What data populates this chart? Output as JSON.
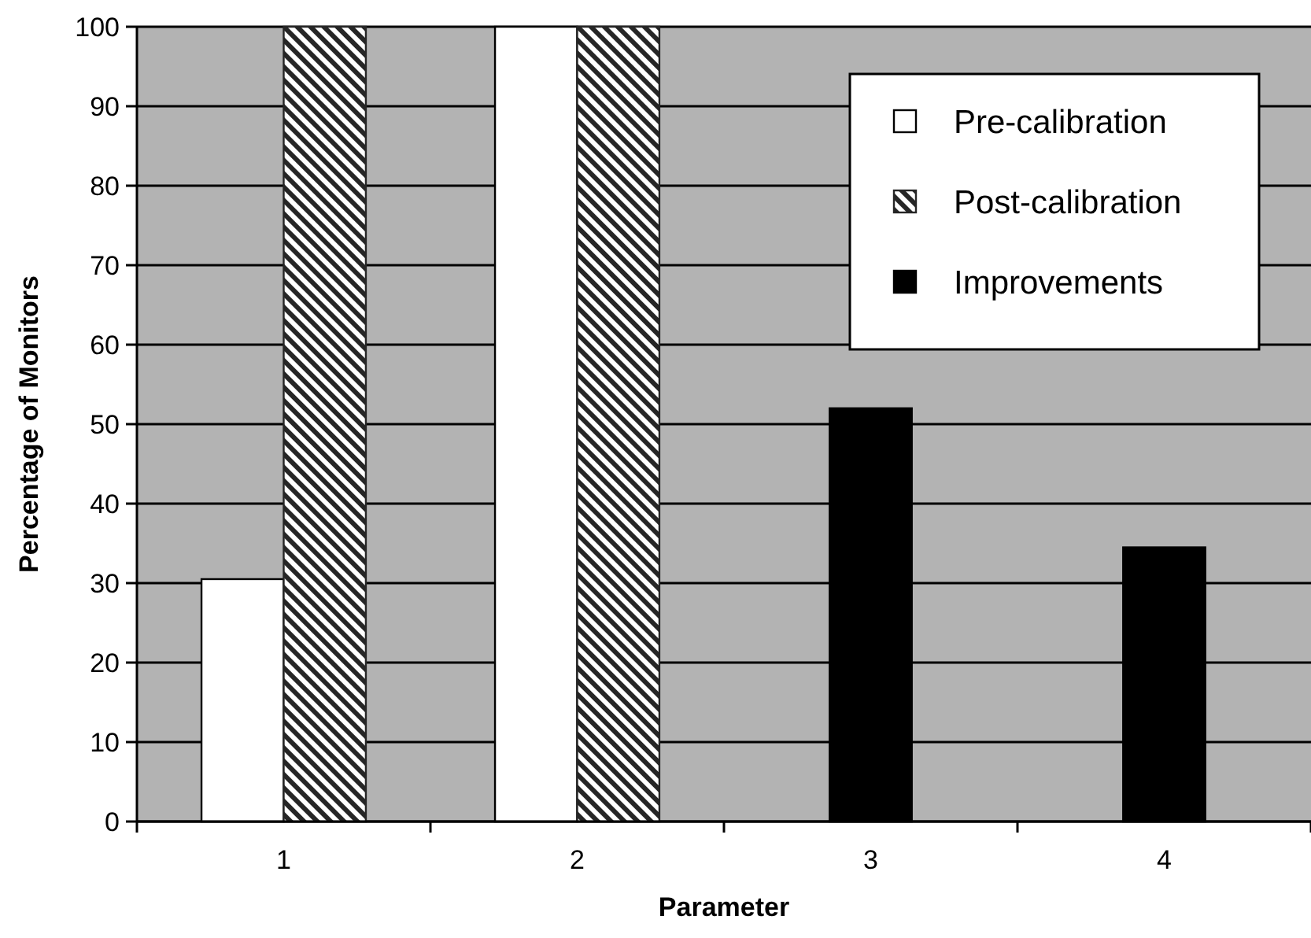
{
  "chart_data": {
    "type": "bar",
    "xlabel": "Parameter",
    "ylabel": "Percentage of Monitors",
    "categories": [
      "1",
      "2",
      "3",
      "4"
    ],
    "series": [
      {
        "name": "Pre-calibration",
        "color": "#ffffff",
        "values": [
          30.5,
          100,
          null,
          null
        ]
      },
      {
        "name": "Post-calibration",
        "color": "#262626",
        "values": [
          100,
          100,
          null,
          null
        ]
      },
      {
        "name": "Improvements",
        "color": "#000000",
        "values": [
          null,
          null,
          52,
          34.5
        ]
      }
    ],
    "ylim": [
      0,
      100
    ],
    "yticks": [
      0,
      10,
      20,
      30,
      40,
      50,
      60,
      70,
      80,
      90,
      100
    ],
    "grid": "y",
    "legend": "top right"
  }
}
